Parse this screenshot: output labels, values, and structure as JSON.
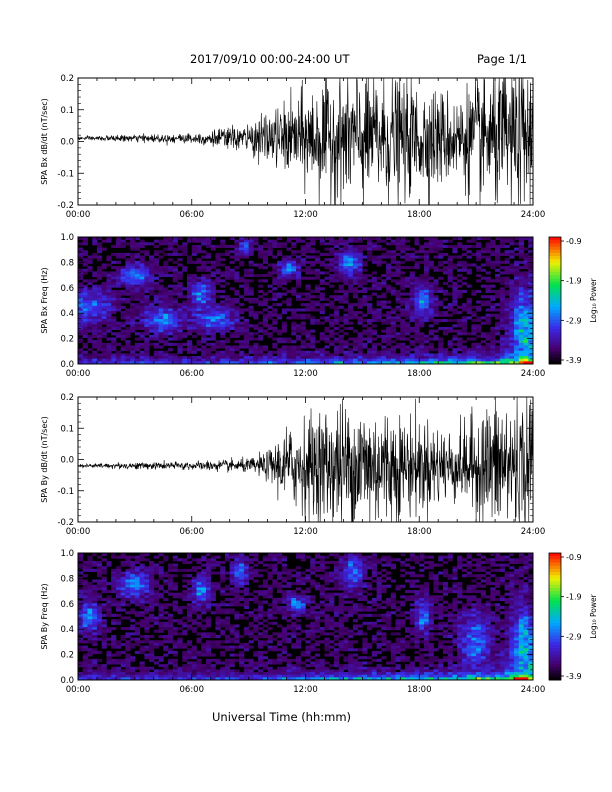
{
  "header": {
    "title": "2017/09/10   00:00-24:00 UT",
    "page": "Page 1/1"
  },
  "footer": {
    "xlabel": "Universal Time (hh:mm)"
  },
  "colorbar": {
    "label": "Log₁₀ Power",
    "ticks": [
      "-0.9",
      "-1.9",
      "-2.9",
      "-3.9"
    ]
  },
  "chart_data": [
    {
      "type": "line",
      "ylabel": "SPA Bx dB/dt (nT/sec)",
      "x_ticks": [
        "00:00",
        "06:00",
        "12:00",
        "18:00",
        "24:00"
      ],
      "y_ticks": [
        "0.2",
        "0.1",
        "0.0",
        "-0.1",
        "-0.2"
      ],
      "xlim": [
        0,
        24
      ],
      "ylim": [
        -0.2,
        0.2
      ],
      "x_unit": "hours UT",
      "baseline": 0.01,
      "envelope": {
        "x": [
          0,
          3,
          6,
          9,
          11,
          13,
          15,
          17,
          19,
          20,
          21,
          22,
          23,
          24
        ],
        "amplitude": [
          0.005,
          0.01,
          0.015,
          0.04,
          0.1,
          0.17,
          0.2,
          0.17,
          0.14,
          0.12,
          0.17,
          0.2,
          0.2,
          0.2
        ]
      }
    },
    {
      "type": "heatmap",
      "ylabel": "SPA Bx Freq (Hz)",
      "x_ticks": [
        "00:00",
        "06:00",
        "12:00",
        "18:00",
        "24:00"
      ],
      "y_ticks": [
        "1.0",
        "0.8",
        "0.6",
        "0.4",
        "0.2",
        "0.0"
      ],
      "xlim": [
        0,
        24
      ],
      "ylim": [
        0.0,
        1.0
      ],
      "clim": [
        -3.9,
        -0.9
      ]
    },
    {
      "type": "line",
      "ylabel": "SPA By dB/dt (nT/sec)",
      "x_ticks": [
        "00:00",
        "06:00",
        "12:00",
        "18:00",
        "24:00"
      ],
      "y_ticks": [
        "0.2",
        "0.1",
        "0.0",
        "-0.1",
        "-0.2"
      ],
      "xlim": [
        0,
        24
      ],
      "ylim": [
        -0.2,
        0.2
      ],
      "x_unit": "hours UT",
      "baseline": -0.02,
      "envelope": {
        "x": [
          0,
          3,
          6,
          9,
          10,
          11,
          13,
          15,
          17,
          19,
          20,
          21,
          22,
          23,
          24
        ],
        "amplitude": [
          0.005,
          0.01,
          0.012,
          0.02,
          0.04,
          0.11,
          0.17,
          0.2,
          0.15,
          0.12,
          0.1,
          0.15,
          0.2,
          0.2,
          0.2
        ]
      }
    },
    {
      "type": "heatmap",
      "ylabel": "SPA By Freq (Hz)",
      "x_ticks": [
        "00:00",
        "06:00",
        "12:00",
        "18:00",
        "24:00"
      ],
      "y_ticks": [
        "1.0",
        "0.8",
        "0.6",
        "0.4",
        "0.2",
        "0.0"
      ],
      "xlim": [
        0,
        24
      ],
      "ylim": [
        0.0,
        1.0
      ],
      "clim": [
        -3.9,
        -0.9
      ]
    }
  ]
}
